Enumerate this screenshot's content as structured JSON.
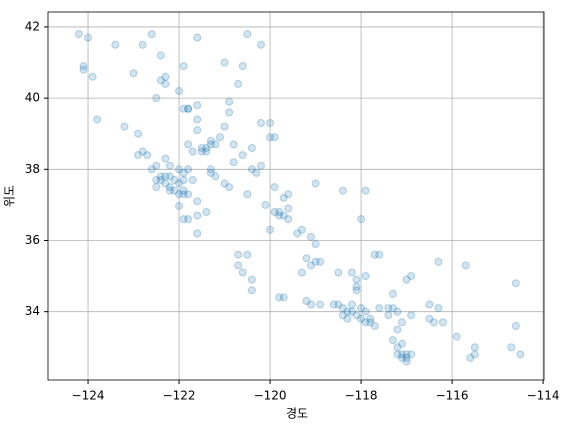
{
  "chart_data": {
    "type": "scatter",
    "xlabel": "경도",
    "ylabel": "위도",
    "xlim": [
      -124.88,
      -113.98
    ],
    "ylim": [
      32.08,
      42.42
    ],
    "xticks": [
      {
        "value": -124,
        "label": "−124"
      },
      {
        "value": -122,
        "label": "−122"
      },
      {
        "value": -120,
        "label": "−120"
      },
      {
        "value": -118,
        "label": "−118"
      },
      {
        "value": -116,
        "label": "−116"
      },
      {
        "value": -114,
        "label": "−114"
      }
    ],
    "yticks": [
      34,
      36,
      38,
      40,
      42
    ],
    "grid": true,
    "color": "#1f77b4",
    "alpha": 0.2,
    "x": [
      -124.2,
      -124.1,
      -124.1,
      -123.9,
      -124.0,
      -123.4,
      -122.6,
      -122.4,
      -122.3,
      -122.4,
      -122.3,
      -121.6,
      -121.8,
      -122.0,
      -121.0,
      -120.5,
      -121.6,
      -120.7,
      -120.9,
      -123.2,
      -123.8,
      -122.9,
      -122.5,
      -123.0,
      -122.8,
      -121.9,
      -120.2,
      -120.6,
      -121.5,
      -121.4,
      -121.3,
      -121.4,
      -121.5,
      -121.2,
      -121.3,
      -121.1,
      -121.6,
      -121.6,
      -121.8,
      -121.7,
      -121.0,
      -120.8,
      -121.9,
      -121.8,
      -122.4,
      -122.3,
      -122.2,
      -122.1,
      -122.0,
      -121.9,
      -121.8,
      -122.0,
      -122.1,
      -122.2,
      -122.3,
      -122.5,
      -122.4,
      -122.6,
      -122.7,
      -122.8,
      -122.3,
      -122.2,
      -122.0,
      -121.9,
      -121.8,
      -122.9,
      -122.5,
      -121.9,
      -121.7,
      -122.0,
      -121.8,
      -121.6,
      -121.9,
      -121.6,
      -121.4,
      -122.5,
      -122.2,
      -121.9,
      -121.3,
      -121.3,
      -121.0,
      -120.9,
      -120.5,
      -120.8,
      -120.4,
      -120.3,
      -121.2,
      -119.8,
      -119.7,
      -119.8,
      -119.9,
      -119.6,
      -119.3,
      -119.4,
      -120.0,
      -119.6,
      -120.1,
      -119.7,
      -119.1,
      -119.0,
      -119.0,
      -119.1,
      -118.9,
      -119.2,
      -119.3,
      -118.5,
      -118.1,
      -117.9,
      -117.7,
      -118.2,
      -121.6,
      -120.7,
      -120.6,
      -120.4,
      -120.5,
      -120.7,
      -119.8,
      -119.7,
      -119.2,
      -119.1,
      -118.9,
      -120.4,
      -118.4,
      -118.3,
      -118.2,
      -118.1,
      -118.0,
      -118.3,
      -118.4,
      -118.5,
      -118.6,
      -118.2,
      -118.0,
      -117.9,
      -117.8,
      -117.9,
      -117.7,
      -117.8,
      -118.1,
      -118.1,
      -117.6,
      -117.4,
      -117.3,
      -117.2,
      -117.4,
      -117.1,
      -117.2,
      -116.9,
      -117.3,
      -117.0,
      -116.5,
      -116.4,
      -116.2,
      -116.5,
      -116.3,
      -117.2,
      -117.1,
      -117.0,
      -117.1,
      -117.0,
      -117.2,
      -117.3,
      -117.1,
      -116.9,
      -117.0,
      -115.5,
      -115.6,
      -115.5,
      -115.9,
      -114.6,
      -114.6,
      -114.5,
      -114.7,
      -116.3,
      -115.7,
      -117.6,
      -116.9,
      -118.0,
      -118.4,
      -119.0,
      -117.9,
      -120.0,
      -119.9,
      -120.4,
      -120.6,
      -120.2,
      -119.9,
      -119.6,
      -120.0,
      -120.2,
      -120.9
    ],
    "y": [
      41.8,
      40.8,
      40.9,
      40.6,
      41.7,
      41.5,
      41.8,
      41.2,
      40.6,
      40.5,
      40.4,
      39.8,
      39.7,
      40.2,
      41.0,
      41.8,
      41.7,
      40.4,
      39.9,
      39.2,
      39.4,
      39.0,
      40.0,
      40.7,
      41.5,
      40.9,
      41.5,
      40.9,
      38.6,
      38.6,
      38.7,
      38.5,
      38.5,
      38.7,
      38.8,
      38.9,
      39.1,
      39.4,
      38.7,
      38.5,
      39.2,
      38.7,
      39.7,
      39.7,
      37.8,
      37.8,
      37.8,
      37.7,
      37.6,
      37.4,
      37.3,
      37.3,
      37.4,
      37.5,
      37.6,
      37.7,
      37.7,
      38.0,
      38.4,
      38.5,
      38.3,
      38.1,
      38.0,
      37.9,
      38.0,
      38.4,
      38.1,
      37.7,
      37.7,
      36.97,
      36.6,
      36.7,
      36.6,
      37.1,
      36.8,
      37.5,
      37.4,
      37.3,
      38.0,
      37.9,
      37.6,
      37.5,
      37.3,
      38.2,
      38.0,
      37.9,
      37.8,
      36.8,
      36.7,
      36.7,
      36.8,
      36.6,
      36.3,
      36.2,
      36.3,
      36.9,
      37.0,
      37.2,
      36.1,
      35.9,
      35.4,
      35.3,
      35.4,
      35.5,
      35.1,
      35.1,
      34.9,
      35.0,
      35.6,
      35.1,
      36.2,
      35.3,
      35.1,
      34.9,
      35.6,
      35.6,
      34.4,
      34.4,
      34.3,
      34.2,
      34.2,
      34.6,
      34.1,
      34.0,
      34.0,
      33.9,
      33.8,
      33.8,
      33.9,
      34.2,
      34.2,
      34.2,
      34.1,
      34.0,
      33.8,
      33.7,
      33.6,
      33.7,
      34.6,
      34.7,
      34.1,
      34.1,
      34.1,
      34.0,
      33.9,
      33.7,
      33.5,
      33.9,
      34.5,
      34.9,
      33.8,
      33.7,
      33.7,
      34.2,
      34.1,
      32.8,
      32.7,
      32.6,
      32.8,
      32.8,
      33.0,
      33.2,
      33.1,
      32.8,
      32.7,
      32.8,
      32.7,
      33.0,
      33.3,
      33.6,
      34.8,
      32.8,
      33.0,
      35.4,
      35.3,
      35.6,
      35.0,
      36.6,
      37.4,
      37.6,
      37.4,
      38.9,
      38.9,
      38.6,
      38.4,
      38.1,
      37.5,
      37.3,
      39.3,
      39.3,
      39.6
    ]
  }
}
